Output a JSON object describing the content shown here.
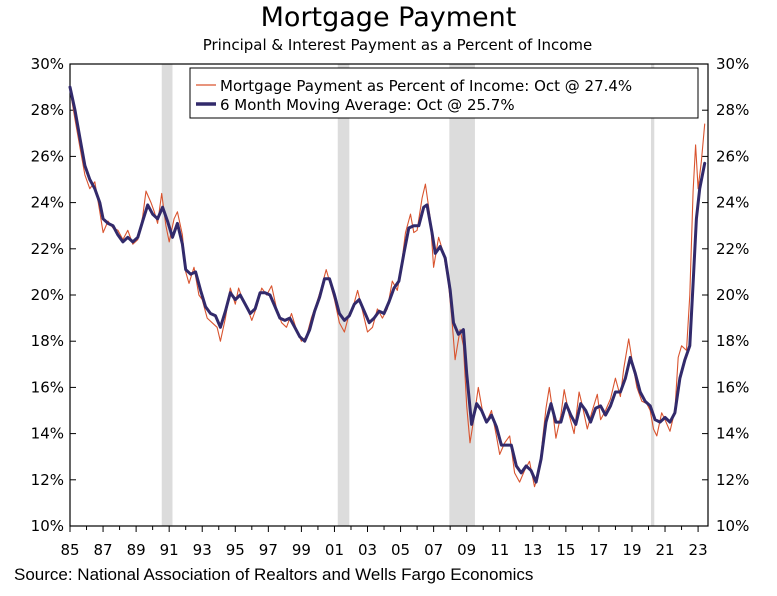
{
  "chart_data": {
    "type": "line",
    "title": "Mortgage Payment",
    "subtitle": "Principal & Interest Payment as a Percent of Income",
    "source": "Source: National Association of Realtors and Wells Fargo Economics",
    "ylim": [
      10,
      30
    ],
    "xlim": [
      1985,
      2023.6
    ],
    "y_ticks": [
      10,
      12,
      14,
      16,
      18,
      20,
      22,
      24,
      26,
      28,
      30
    ],
    "y_tick_labels": [
      "10%",
      "12%",
      "14%",
      "16%",
      "18%",
      "20%",
      "22%",
      "24%",
      "26%",
      "28%",
      "30%"
    ],
    "x_ticks": [
      1985,
      1987,
      1989,
      1991,
      1993,
      1995,
      1997,
      1999,
      2001,
      2003,
      2005,
      2007,
      2009,
      2011,
      2013,
      2015,
      2017,
      2019,
      2021,
      2023
    ],
    "x_tick_labels": [
      "85",
      "87",
      "89",
      "91",
      "93",
      "95",
      "97",
      "99",
      "01",
      "03",
      "05",
      "07",
      "09",
      "11",
      "13",
      "15",
      "17",
      "19",
      "21",
      "23"
    ],
    "recessions": [
      [
        1990.55,
        1991.2
      ],
      [
        2001.2,
        2001.9
      ],
      [
        2007.95,
        2009.5
      ],
      [
        2020.15,
        2020.35
      ]
    ],
    "legend_position": "top-right",
    "series": [
      {
        "name": "Mortgage Payment as Percent of Income: Oct @ 27.4%",
        "color": "#d9542f",
        "style": "thin",
        "points": [
          [
            1985.0,
            28.9
          ],
          [
            1985.3,
            27.6
          ],
          [
            1985.6,
            26.4
          ],
          [
            1985.9,
            25.2
          ],
          [
            1986.2,
            24.6
          ],
          [
            1986.5,
            24.9
          ],
          [
            1986.8,
            23.6
          ],
          [
            1987.0,
            22.7
          ],
          [
            1987.3,
            23.2
          ],
          [
            1987.6,
            22.9
          ],
          [
            1987.9,
            22.8
          ],
          [
            1988.2,
            22.4
          ],
          [
            1988.5,
            22.8
          ],
          [
            1988.8,
            22.2
          ],
          [
            1989.1,
            22.4
          ],
          [
            1989.4,
            23.4
          ],
          [
            1989.6,
            24.5
          ],
          [
            1989.9,
            24.0
          ],
          [
            1990.1,
            23.6
          ],
          [
            1990.3,
            23.1
          ],
          [
            1990.55,
            24.4
          ],
          [
            1990.8,
            23.0
          ],
          [
            1991.0,
            22.3
          ],
          [
            1991.3,
            23.3
          ],
          [
            1991.5,
            23.6
          ],
          [
            1991.8,
            22.6
          ],
          [
            1992.0,
            21.0
          ],
          [
            1992.2,
            20.5
          ],
          [
            1992.5,
            21.2
          ],
          [
            1992.8,
            20.0
          ],
          [
            1993.0,
            19.8
          ],
          [
            1993.3,
            19.0
          ],
          [
            1993.6,
            18.8
          ],
          [
            1993.9,
            18.6
          ],
          [
            1994.1,
            18.0
          ],
          [
            1994.4,
            19.0
          ],
          [
            1994.7,
            20.3
          ],
          [
            1995.0,
            19.6
          ],
          [
            1995.2,
            20.3
          ],
          [
            1995.5,
            19.7
          ],
          [
            1995.8,
            19.3
          ],
          [
            1996.0,
            18.9
          ],
          [
            1996.3,
            19.5
          ],
          [
            1996.6,
            20.3
          ],
          [
            1996.9,
            20.0
          ],
          [
            1997.2,
            20.4
          ],
          [
            1997.5,
            19.4
          ],
          [
            1997.8,
            18.8
          ],
          [
            1998.1,
            18.6
          ],
          [
            1998.4,
            19.2
          ],
          [
            1998.7,
            18.5
          ],
          [
            1999.0,
            18.0
          ],
          [
            1999.3,
            18.2
          ],
          [
            1999.6,
            19.0
          ],
          [
            1999.9,
            19.6
          ],
          [
            2000.2,
            20.3
          ],
          [
            2000.5,
            21.1
          ],
          [
            2000.7,
            20.6
          ],
          [
            2001.0,
            19.8
          ],
          [
            2001.3,
            18.8
          ],
          [
            2001.6,
            18.4
          ],
          [
            2001.9,
            19.2
          ],
          [
            2002.1,
            19.4
          ],
          [
            2002.4,
            20.2
          ],
          [
            2002.7,
            19.3
          ],
          [
            2003.0,
            18.4
          ],
          [
            2003.3,
            18.6
          ],
          [
            2003.6,
            19.4
          ],
          [
            2003.9,
            19.0
          ],
          [
            2004.2,
            19.4
          ],
          [
            2004.5,
            20.6
          ],
          [
            2004.8,
            20.2
          ],
          [
            2005.0,
            21.0
          ],
          [
            2005.3,
            22.7
          ],
          [
            2005.6,
            23.5
          ],
          [
            2005.8,
            22.7
          ],
          [
            2006.0,
            22.8
          ],
          [
            2006.3,
            24.2
          ],
          [
            2006.5,
            24.8
          ],
          [
            2006.8,
            23.3
          ],
          [
            2007.0,
            21.2
          ],
          [
            2007.3,
            22.5
          ],
          [
            2007.6,
            21.8
          ],
          [
            2007.9,
            20.5
          ],
          [
            2008.1,
            19.0
          ],
          [
            2008.3,
            17.2
          ],
          [
            2008.6,
            18.5
          ],
          [
            2008.8,
            17.8
          ],
          [
            2009.0,
            15.2
          ],
          [
            2009.2,
            13.6
          ],
          [
            2009.4,
            14.5
          ],
          [
            2009.7,
            16.0
          ],
          [
            2010.0,
            14.8
          ],
          [
            2010.2,
            14.5
          ],
          [
            2010.5,
            15.0
          ],
          [
            2010.8,
            13.9
          ],
          [
            2011.0,
            13.1
          ],
          [
            2011.3,
            13.6
          ],
          [
            2011.6,
            13.9
          ],
          [
            2011.9,
            12.3
          ],
          [
            2012.2,
            11.9
          ],
          [
            2012.5,
            12.4
          ],
          [
            2012.8,
            12.8
          ],
          [
            2013.1,
            11.7
          ],
          [
            2013.4,
            12.4
          ],
          [
            2013.6,
            13.8
          ],
          [
            2013.8,
            15.1
          ],
          [
            2014.0,
            16.0
          ],
          [
            2014.2,
            15.0
          ],
          [
            2014.4,
            13.8
          ],
          [
            2014.7,
            14.8
          ],
          [
            2014.9,
            15.9
          ],
          [
            2015.2,
            14.8
          ],
          [
            2015.5,
            14.0
          ],
          [
            2015.8,
            15.8
          ],
          [
            2016.0,
            15.2
          ],
          [
            2016.3,
            14.2
          ],
          [
            2016.6,
            15.0
          ],
          [
            2016.9,
            15.7
          ],
          [
            2017.1,
            14.6
          ],
          [
            2017.4,
            15.0
          ],
          [
            2017.7,
            15.5
          ],
          [
            2018.0,
            16.4
          ],
          [
            2018.3,
            15.6
          ],
          [
            2018.5,
            16.8
          ],
          [
            2018.8,
            18.1
          ],
          [
            2019.0,
            17.2
          ],
          [
            2019.3,
            16.0
          ],
          [
            2019.6,
            15.4
          ],
          [
            2019.9,
            15.3
          ],
          [
            2020.1,
            15.0
          ],
          [
            2020.3,
            14.2
          ],
          [
            2020.5,
            13.9
          ],
          [
            2020.8,
            14.9
          ],
          [
            2021.0,
            14.6
          ],
          [
            2021.3,
            14.1
          ],
          [
            2021.6,
            15.0
          ],
          [
            2021.8,
            17.3
          ],
          [
            2022.0,
            17.8
          ],
          [
            2022.3,
            17.6
          ],
          [
            2022.5,
            20.0
          ],
          [
            2022.7,
            24.5
          ],
          [
            2022.85,
            26.5
          ],
          [
            2023.0,
            24.6
          ],
          [
            2023.2,
            25.8
          ],
          [
            2023.4,
            27.4
          ]
        ]
      },
      {
        "name": "6 Month Moving Average: Oct @ 25.7%",
        "color": "#322a6b",
        "style": "thick",
        "points": [
          [
            1985.0,
            29.0
          ],
          [
            1985.3,
            28.0
          ],
          [
            1985.6,
            26.8
          ],
          [
            1985.9,
            25.6
          ],
          [
            1986.2,
            25.0
          ],
          [
            1986.5,
            24.6
          ],
          [
            1986.8,
            24.0
          ],
          [
            1987.0,
            23.3
          ],
          [
            1987.3,
            23.1
          ],
          [
            1987.6,
            23.0
          ],
          [
            1987.9,
            22.6
          ],
          [
            1988.2,
            22.3
          ],
          [
            1988.5,
            22.5
          ],
          [
            1988.8,
            22.3
          ],
          [
            1989.1,
            22.5
          ],
          [
            1989.4,
            23.2
          ],
          [
            1989.7,
            23.9
          ],
          [
            1990.0,
            23.5
          ],
          [
            1990.3,
            23.3
          ],
          [
            1990.6,
            23.8
          ],
          [
            1990.9,
            23.2
          ],
          [
            1991.2,
            22.5
          ],
          [
            1991.5,
            23.1
          ],
          [
            1991.8,
            22.2
          ],
          [
            1992.0,
            21.1
          ],
          [
            1992.3,
            20.9
          ],
          [
            1992.6,
            21.0
          ],
          [
            1992.9,
            20.2
          ],
          [
            1993.2,
            19.5
          ],
          [
            1993.5,
            19.2
          ],
          [
            1993.8,
            19.1
          ],
          [
            1994.1,
            18.6
          ],
          [
            1994.4,
            19.3
          ],
          [
            1994.7,
            20.1
          ],
          [
            1995.0,
            19.8
          ],
          [
            1995.3,
            20.0
          ],
          [
            1995.6,
            19.6
          ],
          [
            1995.9,
            19.2
          ],
          [
            1996.2,
            19.4
          ],
          [
            1996.5,
            20.1
          ],
          [
            1996.8,
            20.1
          ],
          [
            1997.1,
            20.0
          ],
          [
            1997.4,
            19.5
          ],
          [
            1997.7,
            19.0
          ],
          [
            1998.0,
            18.9
          ],
          [
            1998.3,
            19.0
          ],
          [
            1998.6,
            18.6
          ],
          [
            1998.9,
            18.2
          ],
          [
            1999.2,
            18.0
          ],
          [
            1999.5,
            18.5
          ],
          [
            1999.8,
            19.3
          ],
          [
            2000.1,
            19.9
          ],
          [
            2000.4,
            20.7
          ],
          [
            2000.7,
            20.7
          ],
          [
            2001.0,
            20.0
          ],
          [
            2001.3,
            19.2
          ],
          [
            2001.6,
            18.9
          ],
          [
            2001.9,
            19.1
          ],
          [
            2002.2,
            19.6
          ],
          [
            2002.5,
            19.8
          ],
          [
            2002.8,
            19.3
          ],
          [
            2003.1,
            18.8
          ],
          [
            2003.4,
            19.0
          ],
          [
            2003.7,
            19.3
          ],
          [
            2004.0,
            19.2
          ],
          [
            2004.3,
            19.7
          ],
          [
            2004.6,
            20.3
          ],
          [
            2004.9,
            20.6
          ],
          [
            2005.2,
            21.8
          ],
          [
            2005.5,
            22.9
          ],
          [
            2005.8,
            23.0
          ],
          [
            2006.1,
            23.0
          ],
          [
            2006.4,
            23.8
          ],
          [
            2006.6,
            23.9
          ],
          [
            2006.9,
            22.7
          ],
          [
            2007.1,
            21.8
          ],
          [
            2007.4,
            22.1
          ],
          [
            2007.7,
            21.6
          ],
          [
            2008.0,
            20.2
          ],
          [
            2008.2,
            18.8
          ],
          [
            2008.5,
            18.3
          ],
          [
            2008.8,
            18.5
          ],
          [
            2009.0,
            16.6
          ],
          [
            2009.3,
            14.4
          ],
          [
            2009.6,
            15.3
          ],
          [
            2009.9,
            15.0
          ],
          [
            2010.2,
            14.5
          ],
          [
            2010.5,
            14.8
          ],
          [
            2010.8,
            14.3
          ],
          [
            2011.1,
            13.5
          ],
          [
            2011.4,
            13.5
          ],
          [
            2011.7,
            13.5
          ],
          [
            2012.0,
            12.6
          ],
          [
            2012.3,
            12.3
          ],
          [
            2012.6,
            12.6
          ],
          [
            2012.9,
            12.4
          ],
          [
            2013.2,
            11.9
          ],
          [
            2013.5,
            12.9
          ],
          [
            2013.8,
            14.5
          ],
          [
            2014.1,
            15.3
          ],
          [
            2014.4,
            14.5
          ],
          [
            2014.7,
            14.5
          ],
          [
            2015.0,
            15.3
          ],
          [
            2015.3,
            14.8
          ],
          [
            2015.6,
            14.4
          ],
          [
            2015.9,
            15.3
          ],
          [
            2016.2,
            15.0
          ],
          [
            2016.5,
            14.5
          ],
          [
            2016.8,
            15.1
          ],
          [
            2017.1,
            15.2
          ],
          [
            2017.4,
            14.8
          ],
          [
            2017.7,
            15.2
          ],
          [
            2018.0,
            15.8
          ],
          [
            2018.3,
            15.8
          ],
          [
            2018.6,
            16.4
          ],
          [
            2018.9,
            17.3
          ],
          [
            2019.2,
            16.6
          ],
          [
            2019.5,
            15.8
          ],
          [
            2019.8,
            15.4
          ],
          [
            2020.1,
            15.2
          ],
          [
            2020.4,
            14.6
          ],
          [
            2020.7,
            14.5
          ],
          [
            2021.0,
            14.7
          ],
          [
            2021.3,
            14.5
          ],
          [
            2021.6,
            14.9
          ],
          [
            2021.9,
            16.4
          ],
          [
            2022.2,
            17.2
          ],
          [
            2022.5,
            17.8
          ],
          [
            2022.7,
            20.5
          ],
          [
            2022.9,
            23.3
          ],
          [
            2023.1,
            24.6
          ],
          [
            2023.4,
            25.7
          ]
        ]
      }
    ]
  }
}
